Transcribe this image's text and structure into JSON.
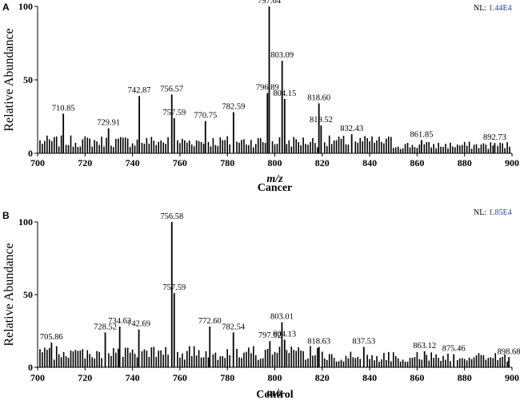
{
  "chart_data": [
    {
      "type": "bar",
      "panel": "A",
      "nl_label": "NL:",
      "nl_value": "1.44E4",
      "xlabel": "m/z",
      "caption": "Cancer",
      "ylabel": "Relative Abundance",
      "xlim": [
        700,
        900
      ],
      "ylim": [
        0,
        100
      ],
      "xticks": [
        "700",
        "720",
        "740",
        "760",
        "780",
        "800",
        "820",
        "840",
        "860",
        "880",
        "900"
      ],
      "yticks": [
        "0",
        "50",
        "100"
      ],
      "colors": {
        "bars": "#000000",
        "leader": "#1aa31a",
        "nl_value": "#1f3fa0"
      },
      "peaks": [
        {
          "x": 710.85,
          "y": 27,
          "label": "710.85"
        },
        {
          "x": 729.91,
          "y": 17,
          "label": "729.91"
        },
        {
          "x": 742.87,
          "y": 39,
          "label": "742.87"
        },
        {
          "x": 756.57,
          "y": 40,
          "label": "756.57"
        },
        {
          "x": 757.59,
          "y": 24,
          "label": "757.59"
        },
        {
          "x": 770.75,
          "y": 22,
          "label": "770.75"
        },
        {
          "x": 782.59,
          "y": 28,
          "label": "782.59"
        },
        {
          "x": 796.89,
          "y": 41,
          "label": "796.89"
        },
        {
          "x": 797.64,
          "y": 100,
          "label": "797.64"
        },
        {
          "x": 803.09,
          "y": 63,
          "label": "803.09"
        },
        {
          "x": 804.15,
          "y": 37,
          "label": "804.15"
        },
        {
          "x": 818.6,
          "y": 34,
          "label": "818.60"
        },
        {
          "x": 819.52,
          "y": 19,
          "label": "819.52"
        },
        {
          "x": 832.43,
          "y": 13,
          "label": "832.43"
        },
        {
          "x": 861.85,
          "y": 9,
          "label": "861.85"
        },
        {
          "x": 892.73,
          "y": 7,
          "label": "892.73"
        }
      ]
    },
    {
      "type": "bar",
      "panel": "B",
      "nl_label": "NL:",
      "nl_value": "1.85E4",
      "xlabel": "m/z",
      "caption": "Control",
      "ylabel": "Relative Abundance",
      "xlim": [
        700,
        900
      ],
      "ylim": [
        0,
        100
      ],
      "xticks": [
        "700",
        "720",
        "740",
        "760",
        "780",
        "800",
        "820",
        "840",
        "860",
        "880",
        "900"
      ],
      "yticks": [
        "0",
        "50",
        "100"
      ],
      "colors": {
        "bars": "#000000",
        "leader": "#1aa31a",
        "nl_value": "#1f3fa0"
      },
      "peaks": [
        {
          "x": 705.86,
          "y": 17,
          "label": "705.86"
        },
        {
          "x": 728.52,
          "y": 24,
          "label": "728.52"
        },
        {
          "x": 734.62,
          "y": 28,
          "label": "734.62"
        },
        {
          "x": 742.69,
          "y": 26,
          "label": "742.69"
        },
        {
          "x": 756.58,
          "y": 100,
          "label": "756.58"
        },
        {
          "x": 757.59,
          "y": 51,
          "label": "757.59"
        },
        {
          "x": 772.6,
          "y": 28,
          "label": "772.60"
        },
        {
          "x": 782.54,
          "y": 24,
          "label": "782.54"
        },
        {
          "x": 797.92,
          "y": 18,
          "label": "797.92"
        },
        {
          "x": 803.01,
          "y": 31,
          "label": "803.01"
        },
        {
          "x": 804.13,
          "y": 19,
          "label": "804.13"
        },
        {
          "x": 818.63,
          "y": 14,
          "label": "818.63"
        },
        {
          "x": 837.53,
          "y": 14,
          "label": "837.53"
        },
        {
          "x": 863.12,
          "y": 11,
          "label": "863.12"
        },
        {
          "x": 875.46,
          "y": 9,
          "label": "875.46"
        },
        {
          "x": 898.68,
          "y": 7,
          "label": "898.68"
        }
      ]
    }
  ]
}
